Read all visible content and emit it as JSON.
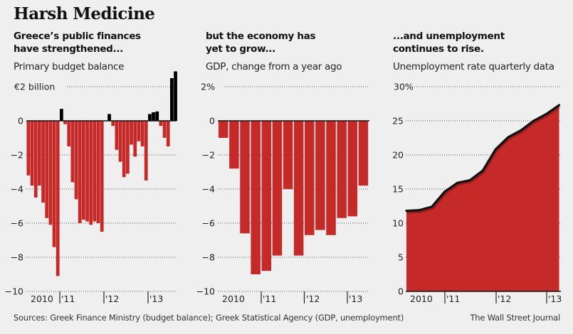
{
  "title": "Harsh Medicine",
  "source": "Sources: Greek Finance Ministry (budget balance); Greek Statistical Agency (GDP, unemployment)",
  "credit": "The Wall Street Journal",
  "colors": {
    "negative": "#c62a28",
    "positive": "#000000",
    "background": "#efefef",
    "line": "#111111"
  },
  "panels": [
    {
      "headline_1": "Greece’s public finances",
      "headline_2": "have strengthened...",
      "subtitle": "Primary budget balance"
    },
    {
      "headline_1": "but the economy has",
      "headline_2": "yet to grow...",
      "subtitle": "GDP, change from a year ago"
    },
    {
      "headline_1": "...and unemployment",
      "headline_2": "continues to rise.",
      "subtitle": "Unemployment rate quarterly data"
    }
  ],
  "chart_data": [
    {
      "type": "bar",
      "title": "Primary budget balance",
      "unit": "€ billion",
      "frequency": "monthly",
      "start": "2010-04",
      "ylim": [
        -10,
        2
      ],
      "yticks": [
        2,
        0,
        -2,
        -4,
        -6,
        -8,
        -10
      ],
      "ytick_labels": [
        "€2 billion",
        "0",
        "−2",
        "−4",
        "−6",
        "−8",
        "−10"
      ],
      "xtick_labels": [
        "2010",
        "'11",
        "'12",
        "'13"
      ],
      "grid": true,
      "values": [
        -3.2,
        -3.8,
        -4.5,
        -3.8,
        -4.8,
        -5.7,
        -6.1,
        -7.4,
        -9.1,
        0.7,
        -0.2,
        -1.5,
        -3.6,
        -4.6,
        -6.0,
        -5.8,
        -5.9,
        -6.1,
        -5.9,
        -6.0,
        -6.5,
        0.0,
        0.4,
        -0.3,
        -1.7,
        -2.4,
        -3.3,
        -3.1,
        -1.4,
        -2.1,
        -1.2,
        -1.5,
        -3.5,
        0.4,
        0.5,
        0.55,
        -0.3,
        -1.0,
        -1.5,
        2.5,
        2.9
      ]
    },
    {
      "type": "bar",
      "title": "GDP, change from a year ago",
      "unit": "%",
      "frequency": "quarterly",
      "categories": [
        "2010Q1",
        "2010Q2",
        "2010Q3",
        "2010Q4",
        "2011Q1",
        "2011Q2",
        "2011Q3",
        "2011Q4",
        "2012Q1",
        "2012Q2",
        "2012Q3",
        "2012Q4",
        "2013Q1",
        "2013Q2"
      ],
      "values": [
        -1.0,
        -2.8,
        -6.6,
        -9.0,
        -8.8,
        -7.9,
        -4.0,
        -7.9,
        -6.7,
        -6.4,
        -6.7,
        -5.7,
        -5.6,
        -3.8
      ],
      "ylim": [
        -10,
        2
      ],
      "yticks": [
        2,
        0,
        -2,
        -4,
        -6,
        -8,
        -10
      ],
      "ytick_labels": [
        "2%",
        "0",
        "−2",
        "−4",
        "−6",
        "−8",
        "−10"
      ],
      "xtick_labels": [
        "2010",
        "'11",
        "'12",
        "'13"
      ],
      "grid": true
    },
    {
      "type": "area",
      "title": "Unemployment rate quarterly data",
      "unit": "%",
      "frequency": "quarterly",
      "categories": [
        "2010Q1",
        "2010Q2",
        "2010Q3",
        "2010Q4",
        "2011Q1",
        "2011Q2",
        "2011Q3",
        "2011Q4",
        "2012Q1",
        "2012Q2",
        "2012Q3",
        "2012Q4",
        "2013Q1"
      ],
      "values": [
        11.8,
        11.9,
        12.4,
        14.6,
        15.9,
        16.3,
        17.7,
        20.8,
        22.6,
        23.6,
        25.0,
        26.0,
        27.3
      ],
      "ylim": [
        0,
        30
      ],
      "yticks": [
        30,
        25,
        20,
        15,
        10,
        5,
        0
      ],
      "ytick_labels": [
        "30%",
        "25",
        "20",
        "15",
        "10",
        "5",
        "0"
      ],
      "xtick_labels": [
        "2010",
        "'11",
        "'12",
        "'13"
      ],
      "grid": true
    }
  ]
}
